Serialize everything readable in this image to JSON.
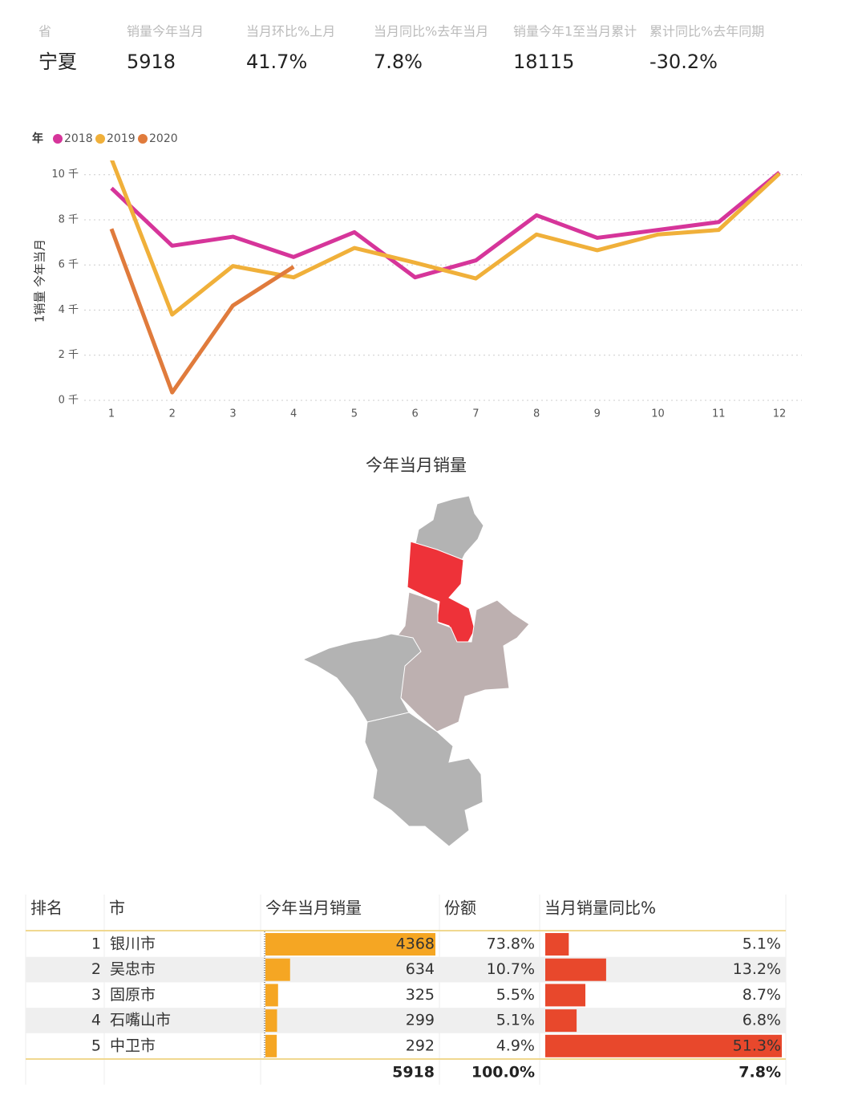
{
  "kpis": [
    {
      "label": "省",
      "value": "宁夏",
      "color": "#222222"
    },
    {
      "label": "销量今年当月",
      "value": 5918,
      "color": "#222222"
    },
    {
      "label": "当月环比%上月",
      "value": "41.7%",
      "color": "#d9383f"
    },
    {
      "label": "当月同比%去年当月",
      "value": "7.8%",
      "color": "#d9383f"
    },
    {
      "label": "销量今年1至当月累计",
      "value": 18115,
      "color": "#222222"
    },
    {
      "label": "累计同比%去年同期",
      "value": "-30.2%",
      "color": "#5cb85c"
    }
  ],
  "chart_data": {
    "type": "line",
    "legend_title": "年",
    "y_label": "1销量 今年当月",
    "categories": [
      1,
      2,
      3,
      4,
      5,
      6,
      7,
      8,
      9,
      10,
      11,
      12
    ],
    "series": [
      {
        "name": "2018",
        "color": "#d6359a",
        "values": [
          9400,
          6850,
          7250,
          6350,
          7450,
          5450,
          6200,
          8200,
          7200,
          7550,
          7900,
          10100
        ]
      },
      {
        "name": "2019",
        "color": "#f0b03a",
        "values": [
          10700,
          3800,
          5950,
          5450,
          6750,
          6100,
          5400,
          7350,
          6650,
          7350,
          7550,
          10050
        ]
      },
      {
        "name": "2020",
        "color": "#e07b3c",
        "values": [
          7600,
          350,
          4200,
          5918,
          null,
          null,
          null,
          null,
          null,
          null,
          null,
          null
        ]
      }
    ],
    "ylim": [
      0,
      10700
    ],
    "yticks": [
      {
        "value": 0,
        "label": "0 千"
      },
      {
        "value": 2000,
        "label": "2 千"
      },
      {
        "value": 4000,
        "label": "4 千"
      },
      {
        "value": 6000,
        "label": "6 千"
      },
      {
        "value": 8000,
        "label": "8 千"
      },
      {
        "value": 10000,
        "label": "10 千"
      }
    ],
    "grid": true
  },
  "map": {
    "title": "今年当月销量"
  },
  "table": {
    "headers": [
      "排名",
      "市",
      "今年当月销量",
      "份额",
      "当月销量同比%"
    ],
    "rows": [
      {
        "rank": 1,
        "city": "银川市",
        "sales": 4368,
        "share": "73.8%",
        "yoy": {
          "value": 5.1,
          "label": "5.1%"
        }
      },
      {
        "rank": 2,
        "city": "吴忠市",
        "sales": 634,
        "share": "10.7%",
        "yoy": {
          "value": 13.2,
          "label": "13.2%"
        }
      },
      {
        "rank": 3,
        "city": "固原市",
        "sales": 325,
        "share": "5.5%",
        "yoy": {
          "value": 8.7,
          "label": "8.7%"
        }
      },
      {
        "rank": 4,
        "city": "石嘴山市",
        "sales": 299,
        "share": "5.1%",
        "yoy": {
          "value": 6.8,
          "label": "6.8%"
        }
      },
      {
        "rank": 5,
        "city": "中卫市",
        "sales": 292,
        "share": "4.9%",
        "yoy": {
          "value": 51.3,
          "label": "51.3%"
        }
      }
    ],
    "total": {
      "sales": 5918,
      "share": "100.0%",
      "yoy": "7.8%"
    },
    "sales_bar_color": "#f5a623",
    "yoy_bar_color": "#e8482c"
  }
}
